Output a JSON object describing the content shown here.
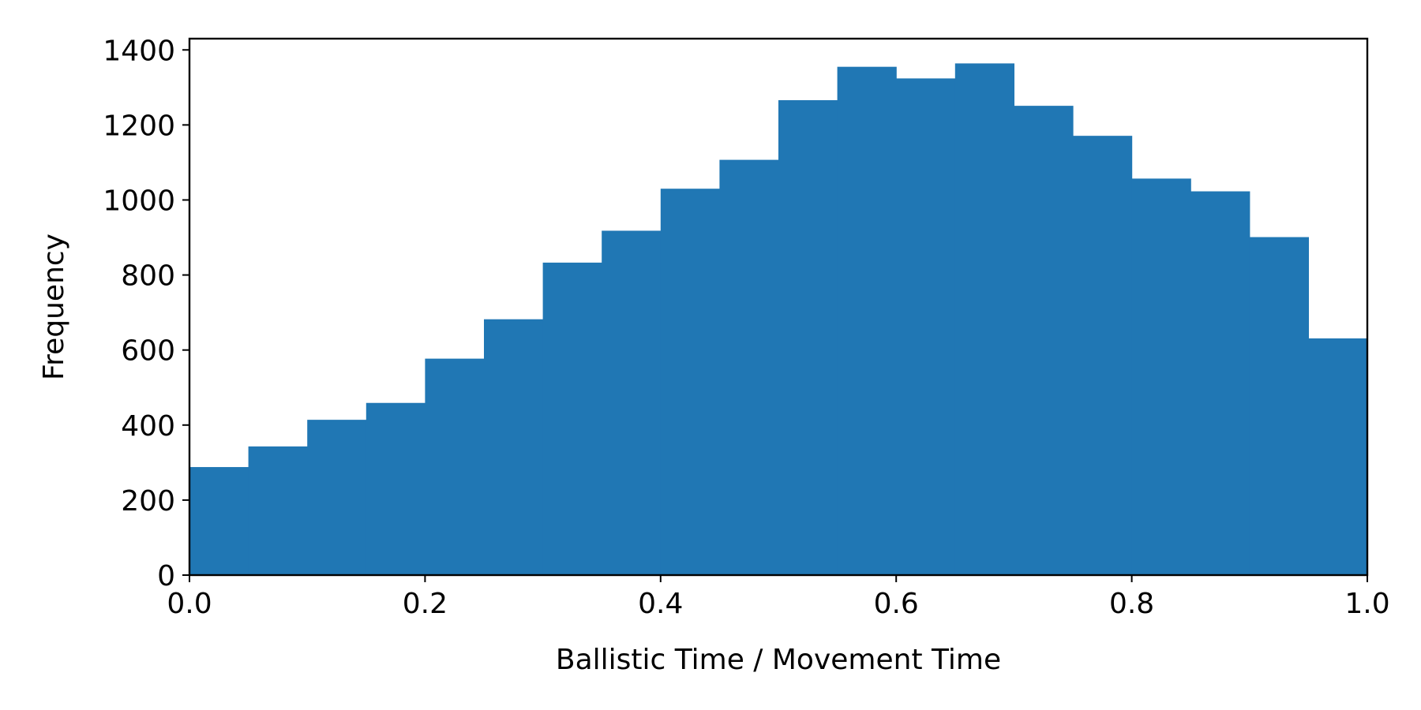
{
  "chart_data": {
    "type": "bar",
    "subtype": "histogram",
    "title": "",
    "xlabel": "Ballistic Time / Movement Time",
    "ylabel": "Frequency",
    "xlim": [
      0.0,
      1.0
    ],
    "ylim": [
      0,
      1430
    ],
    "bin_width": 0.05,
    "bin_starts": [
      0.0,
      0.05,
      0.1,
      0.15,
      0.2,
      0.25,
      0.3,
      0.35,
      0.4,
      0.45,
      0.5,
      0.55,
      0.6,
      0.65,
      0.7,
      0.75,
      0.8,
      0.85,
      0.9,
      0.95
    ],
    "values": [
      288,
      343,
      414,
      459,
      577,
      682,
      833,
      918,
      1030,
      1107,
      1266,
      1355,
      1324,
      1364,
      1251,
      1171,
      1057,
      1023,
      901,
      631
    ],
    "x_ticks": [
      "0.0",
      "0.2",
      "0.4",
      "0.6",
      "0.8",
      "1.0"
    ],
    "x_tick_values": [
      0.0,
      0.2,
      0.4,
      0.6,
      0.8,
      1.0
    ],
    "y_ticks": [
      "0",
      "200",
      "400",
      "600",
      "800",
      "1000",
      "1200",
      "1400"
    ],
    "y_tick_values": [
      0,
      200,
      400,
      600,
      800,
      1000,
      1200,
      1400
    ],
    "bar_color": "#2077b4",
    "grid": false,
    "legend": "none"
  }
}
